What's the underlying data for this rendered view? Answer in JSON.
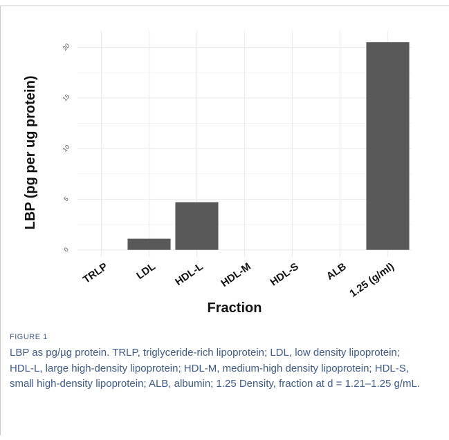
{
  "chart_data": {
    "type": "bar",
    "categories": [
      "TRLP",
      "LDL",
      "HDL-L",
      "HDL-M",
      "HDL-S",
      "ALB",
      "1.25 (g/ml)"
    ],
    "values": [
      0,
      1.1,
      4.7,
      0,
      0,
      0,
      20.5
    ],
    "xlabel": "Fraction",
    "ylabel": "LBP (pg per ug protein)",
    "ylim": [
      -0.7,
      21.6
    ],
    "yticks": [
      0,
      5,
      10,
      15,
      20
    ],
    "ytick_labels": [
      "0",
      "5",
      "10",
      "15",
      "20"
    ],
    "grid": true,
    "bar_color": "#595959",
    "grid_color": "#ebebeb"
  },
  "figure": {
    "label": "FIGURE 1",
    "caption": "LBP as pg/µg protein. TRLP, triglyceride-rich lipoprotein; LDL, low density lipoprotein; HDL-L, large high-density lipoprotein; HDL-M, medium-high density lipoprotein; HDL-S, small high-density lipoprotein; ALB, albumin; 1.25 Density, fraction at d = 1.21–1.25 g/mL.",
    "label_color": "#3c5a8a"
  }
}
